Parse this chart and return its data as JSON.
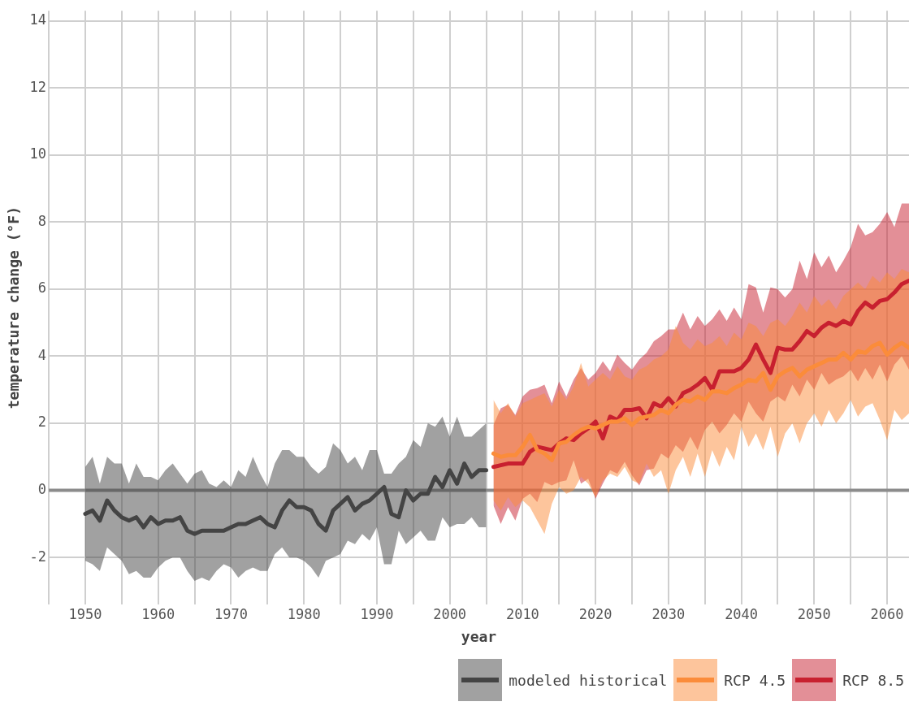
{
  "chart_data": {
    "type": "line",
    "xlabel": "year",
    "ylabel": "temperature change (°F)",
    "xlim": [
      1945,
      2063
    ],
    "ylim": [
      -3.4,
      14.3
    ],
    "xticks": [
      {
        "value": 1945,
        "label": null
      },
      1950,
      {
        "value": 1955,
        "label": null
      },
      1960,
      {
        "value": 1965,
        "label": null
      },
      1970,
      {
        "value": 1975,
        "label": null
      },
      1980,
      {
        "value": 1985,
        "label": null
      },
      1990,
      {
        "value": 1995,
        "label": null
      },
      2000,
      {
        "value": 2005,
        "label": null
      },
      2010,
      {
        "value": 2015,
        "label": null
      },
      2020,
      {
        "value": 2025,
        "label": null
      },
      2030,
      {
        "value": 2035,
        "label": null
      },
      2040,
      {
        "value": 2045,
        "label": null
      },
      2050,
      {
        "value": 2055,
        "label": null
      },
      2060
    ],
    "yticks": [
      -2,
      0,
      2,
      4,
      6,
      8,
      10,
      12,
      14
    ],
    "grid": true,
    "legend": "bottom",
    "marker": "none",
    "line_style": "solid",
    "ref_lines": [
      {
        "axis": "y",
        "value": 0,
        "color": "#8c8c8c"
      }
    ],
    "series": [
      {
        "name": "modeled historical",
        "color": "#444444",
        "x": [
          1950,
          1951,
          1952,
          1953,
          1954,
          1955,
          1956,
          1957,
          1958,
          1959,
          1960,
          1961,
          1962,
          1963,
          1964,
          1965,
          1966,
          1967,
          1968,
          1969,
          1970,
          1971,
          1972,
          1973,
          1974,
          1975,
          1976,
          1977,
          1978,
          1979,
          1980,
          1981,
          1982,
          1983,
          1984,
          1985,
          1986,
          1987,
          1988,
          1989,
          1990,
          1991,
          1992,
          1993,
          1994,
          1995,
          1996,
          1997,
          1998,
          1999,
          2000,
          2001,
          2002,
          2003,
          2004,
          2005
        ],
        "values": [
          -0.7,
          -0.6,
          -0.9,
          -0.3,
          -0.6,
          -0.8,
          -0.9,
          -0.8,
          -1.1,
          -0.8,
          -1.0,
          -0.9,
          -0.9,
          -0.8,
          -1.2,
          -1.3,
          -1.2,
          -1.2,
          -1.2,
          -1.2,
          -1.1,
          -1.0,
          -1.0,
          -0.9,
          -0.8,
          -1.0,
          -1.1,
          -0.6,
          -0.3,
          -0.5,
          -0.5,
          -0.6,
          -1.0,
          -1.2,
          -0.6,
          -0.4,
          -0.2,
          -0.6,
          -0.4,
          -0.3,
          -0.1,
          0.1,
          -0.7,
          -0.8,
          0.0,
          -0.3,
          -0.1,
          -0.1,
          0.4,
          0.1,
          0.6,
          0.2,
          0.8,
          0.4,
          0.6,
          0.6
        ],
        "upper": [
          0.7,
          1.0,
          0.2,
          1.0,
          0.8,
          0.8,
          0.2,
          0.8,
          0.4,
          0.4,
          0.3,
          0.6,
          0.8,
          0.5,
          0.2,
          0.5,
          0.6,
          0.2,
          0.1,
          0.3,
          0.1,
          0.6,
          0.4,
          1.0,
          0.5,
          0.1,
          0.8,
          1.2,
          1.2,
          1.0,
          1.0,
          0.7,
          0.5,
          0.7,
          1.4,
          1.2,
          0.8,
          1.0,
          0.6,
          1.2,
          1.2,
          0.5,
          0.5,
          0.8,
          1.0,
          1.5,
          1.3,
          2.0,
          1.9,
          2.2,
          1.6,
          2.2,
          1.6,
          1.6,
          1.8,
          2.0
        ],
        "lower": [
          -2.1,
          -2.2,
          -2.4,
          -1.7,
          -1.9,
          -2.1,
          -2.5,
          -2.4,
          -2.6,
          -2.6,
          -2.3,
          -2.1,
          -2.0,
          -2.0,
          -2.4,
          -2.7,
          -2.6,
          -2.7,
          -2.4,
          -2.2,
          -2.3,
          -2.6,
          -2.4,
          -2.3,
          -2.4,
          -2.4,
          -1.9,
          -1.7,
          -2.0,
          -2.0,
          -2.1,
          -2.3,
          -2.6,
          -2.1,
          -2.0,
          -1.9,
          -1.5,
          -1.6,
          -1.3,
          -1.5,
          -1.1,
          -2.2,
          -2.2,
          -1.2,
          -1.6,
          -1.4,
          -1.2,
          -1.5,
          -1.5,
          -0.8,
          -1.1,
          -1.0,
          -1.0,
          -0.8,
          -1.1,
          -1.1
        ]
      },
      {
        "name": "RCP 4.5",
        "color": "#fb8c3a",
        "x": [
          2006,
          2007,
          2008,
          2009,
          2010,
          2011,
          2012,
          2013,
          2014,
          2015,
          2016,
          2017,
          2018,
          2019,
          2020,
          2021,
          2022,
          2023,
          2024,
          2025,
          2026,
          2027,
          2028,
          2029,
          2030,
          2031,
          2032,
          2033,
          2034,
          2035,
          2036,
          2037,
          2038,
          2039,
          2040,
          2041,
          2042,
          2043,
          2044,
          2045,
          2046,
          2047,
          2048,
          2049,
          2050,
          2051,
          2052,
          2053,
          2054,
          2055,
          2056,
          2057,
          2058,
          2059,
          2060,
          2061,
          2062,
          2063
        ],
        "values": [
          1.1,
          1.0,
          1.05,
          1.05,
          1.3,
          1.65,
          1.2,
          1.1,
          0.9,
          1.4,
          1.45,
          1.65,
          1.8,
          1.9,
          1.85,
          1.95,
          2.05,
          2.05,
          2.15,
          1.95,
          2.15,
          2.2,
          2.25,
          2.4,
          2.3,
          2.55,
          2.7,
          2.65,
          2.8,
          2.7,
          2.95,
          2.95,
          2.9,
          3.05,
          3.15,
          3.3,
          3.25,
          3.5,
          3.0,
          3.4,
          3.55,
          3.65,
          3.4,
          3.6,
          3.7,
          3.8,
          3.9,
          3.9,
          4.1,
          3.9,
          4.15,
          4.1,
          4.3,
          4.4,
          4.05,
          4.25,
          4.4,
          4.25
        ],
        "upper": [
          2.7,
          2.3,
          2.6,
          2.2,
          2.6,
          2.7,
          2.8,
          2.9,
          2.5,
          3.0,
          2.7,
          3.1,
          3.8,
          3.1,
          3.3,
          3.5,
          3.3,
          3.7,
          3.4,
          3.3,
          3.6,
          3.7,
          3.9,
          4.0,
          4.2,
          4.9,
          4.4,
          4.2,
          4.5,
          4.3,
          4.4,
          4.6,
          4.3,
          4.7,
          4.5,
          5.0,
          4.9,
          4.6,
          5.0,
          5.1,
          4.9,
          5.2,
          5.6,
          5.3,
          5.8,
          5.5,
          5.7,
          5.4,
          5.8,
          6.0,
          6.2,
          6.0,
          6.4,
          6.2,
          6.5,
          6.3,
          6.6,
          6.5
        ],
        "lower": [
          -0.3,
          -0.6,
          -0.2,
          -0.5,
          -0.3,
          -0.5,
          -0.9,
          -1.3,
          -0.4,
          0.1,
          -0.1,
          0.0,
          0.4,
          0.2,
          -0.2,
          0.3,
          0.5,
          0.4,
          0.7,
          0.3,
          0.2,
          0.8,
          0.4,
          0.6,
          -0.1,
          0.6,
          1.0,
          0.4,
          1.1,
          0.4,
          1.2,
          0.7,
          1.3,
          0.9,
          1.9,
          1.3,
          1.7,
          1.2,
          1.9,
          1.0,
          1.7,
          2.0,
          1.4,
          2.0,
          2.3,
          1.9,
          2.4,
          2.0,
          2.3,
          2.7,
          2.2,
          2.5,
          2.6,
          2.1,
          1.5,
          2.4,
          2.1,
          2.3
        ]
      },
      {
        "name": "RCP 8.5",
        "color": "#c8202f",
        "x": [
          2006,
          2007,
          2008,
          2009,
          2010,
          2011,
          2012,
          2013,
          2014,
          2015,
          2016,
          2017,
          2018,
          2019,
          2020,
          2021,
          2022,
          2023,
          2024,
          2025,
          2026,
          2027,
          2028,
          2029,
          2030,
          2031,
          2032,
          2033,
          2034,
          2035,
          2036,
          2037,
          2038,
          2039,
          2040,
          2041,
          2042,
          2043,
          2044,
          2045,
          2046,
          2047,
          2048,
          2049,
          2050,
          2051,
          2052,
          2053,
          2054,
          2055,
          2056,
          2057,
          2058,
          2059,
          2060,
          2061,
          2062,
          2063
        ],
        "values": [
          0.7,
          0.75,
          0.8,
          0.8,
          0.8,
          1.15,
          1.3,
          1.25,
          1.2,
          1.4,
          1.55,
          1.5,
          1.7,
          1.85,
          2.05,
          1.55,
          2.2,
          2.1,
          2.4,
          2.4,
          2.45,
          2.15,
          2.6,
          2.5,
          2.75,
          2.5,
          2.9,
          3.0,
          3.15,
          3.35,
          3.0,
          3.55,
          3.55,
          3.55,
          3.65,
          3.9,
          4.35,
          3.9,
          3.5,
          4.25,
          4.2,
          4.2,
          4.45,
          4.75,
          4.6,
          4.85,
          5.0,
          4.9,
          5.05,
          4.95,
          5.35,
          5.6,
          5.45,
          5.65,
          5.7,
          5.9,
          6.15,
          6.25
        ],
        "upper": [
          1.95,
          2.45,
          2.55,
          2.25,
          2.8,
          3.0,
          3.05,
          3.15,
          2.6,
          3.25,
          2.8,
          3.3,
          3.65,
          3.3,
          3.5,
          3.85,
          3.55,
          4.05,
          3.8,
          3.6,
          3.9,
          4.1,
          4.45,
          4.6,
          4.8,
          4.8,
          5.3,
          4.8,
          5.2,
          4.9,
          5.1,
          5.4,
          5.05,
          5.45,
          5.1,
          6.15,
          6.05,
          5.3,
          6.05,
          6.0,
          5.75,
          6.0,
          6.85,
          6.3,
          7.1,
          6.65,
          7.0,
          6.5,
          6.85,
          7.25,
          7.95,
          7.6,
          7.7,
          7.95,
          8.3,
          7.85,
          8.55,
          8.55
        ],
        "lower": [
          -0.45,
          -1.0,
          -0.5,
          -0.9,
          -0.25,
          -0.1,
          -0.35,
          0.25,
          0.15,
          0.25,
          0.3,
          0.9,
          0.2,
          0.35,
          -0.25,
          0.2,
          0.6,
          0.5,
          0.85,
          0.45,
          0.15,
          0.6,
          0.65,
          1.1,
          0.95,
          1.35,
          1.15,
          1.6,
          1.2,
          1.8,
          2.05,
          1.7,
          1.95,
          2.3,
          2.05,
          2.65,
          2.3,
          2.05,
          2.65,
          2.8,
          2.65,
          3.15,
          2.8,
          3.3,
          3.0,
          3.5,
          3.15,
          3.3,
          3.4,
          3.6,
          3.25,
          3.65,
          3.3,
          3.75,
          3.25,
          3.75,
          4.0,
          3.6
        ]
      }
    ]
  }
}
